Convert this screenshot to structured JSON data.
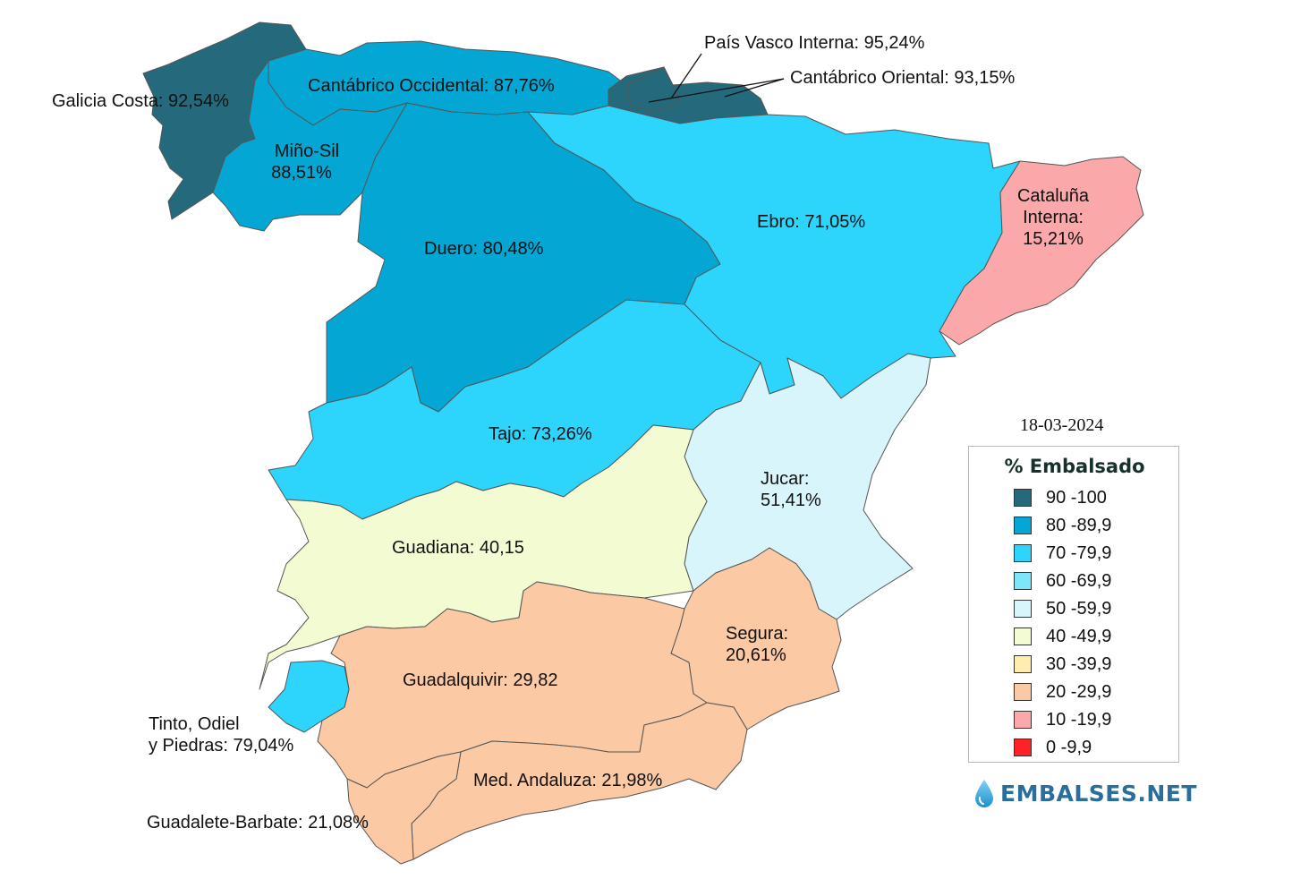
{
  "date": "18-03-2024",
  "legend": {
    "title": "% Embalsado",
    "items": [
      {
        "label": "90 -100",
        "color": "#246a7c"
      },
      {
        "label": "80 -89,9",
        "color": "#04a6d3"
      },
      {
        "label": "70 -79,9",
        "color": "#2dd4fc"
      },
      {
        "label": "60 -69,9",
        "color": "#7ee6fb"
      },
      {
        "label": "50 -59,9",
        "color": "#d8f5fb"
      },
      {
        "label": "40 -49,9",
        "color": "#f3fbd3"
      },
      {
        "label": "30 -39,9",
        "color": "#fdeeb0"
      },
      {
        "label": "20 -29,9",
        "color": "#fbc9a3"
      },
      {
        "label": "10 -19,9",
        "color": "#fba8ab"
      },
      {
        "label": "0 -9,9",
        "color": "#fc2226"
      }
    ]
  },
  "regions": {
    "galicia_costa": {
      "text": "Galicia Costa: 92,54%",
      "value": 92.54
    },
    "cantabrico_occidental": {
      "text": "Cantábrico Occidental: 87,76%",
      "value": 87.76
    },
    "pais_vasco_interna": {
      "text": "País Vasco Interna: 95,24%",
      "value": 95.24
    },
    "cantabrico_oriental": {
      "text": "Cantábrico Oriental: 93,15%",
      "value": 93.15
    },
    "mino_sil": {
      "line1": "Miño-Sil",
      "line2": "88,51%",
      "value": 88.51
    },
    "duero": {
      "text": "Duero: 80,48%",
      "value": 80.48
    },
    "ebro": {
      "text": "Ebro: 71,05%",
      "value": 71.05
    },
    "cataluna_interna": {
      "line1": "Cataluña",
      "line2": "Interna:",
      "line3": "15,21%",
      "value": 15.21
    },
    "tajo": {
      "text": "Tajo: 73,26%",
      "value": 73.26
    },
    "jucar": {
      "line1": "Jucar:",
      "line2": "51,41%",
      "value": 51.41
    },
    "guadiana": {
      "text": "Guadiana: 40,15",
      "value": 40.15
    },
    "segura": {
      "line1": "Segura:",
      "line2": "20,61%",
      "value": 20.61
    },
    "guadalquivir": {
      "text": "Guadalquivir: 29,82",
      "value": 29.82
    },
    "tinto_odiel_piedras": {
      "line1": "Tinto, Odiel",
      "line2": "y Piedras: 79,04%",
      "value": 79.04
    },
    "med_andaluza": {
      "text": "Med. Andaluza: 21,98%",
      "value": 21.98
    },
    "guadalete_barbate": {
      "text": "Guadalete-Barbate: 21,08%",
      "value": 21.08
    }
  },
  "brand": {
    "name": "EMBALSES.NET",
    "icon": "water-drop-icon"
  }
}
